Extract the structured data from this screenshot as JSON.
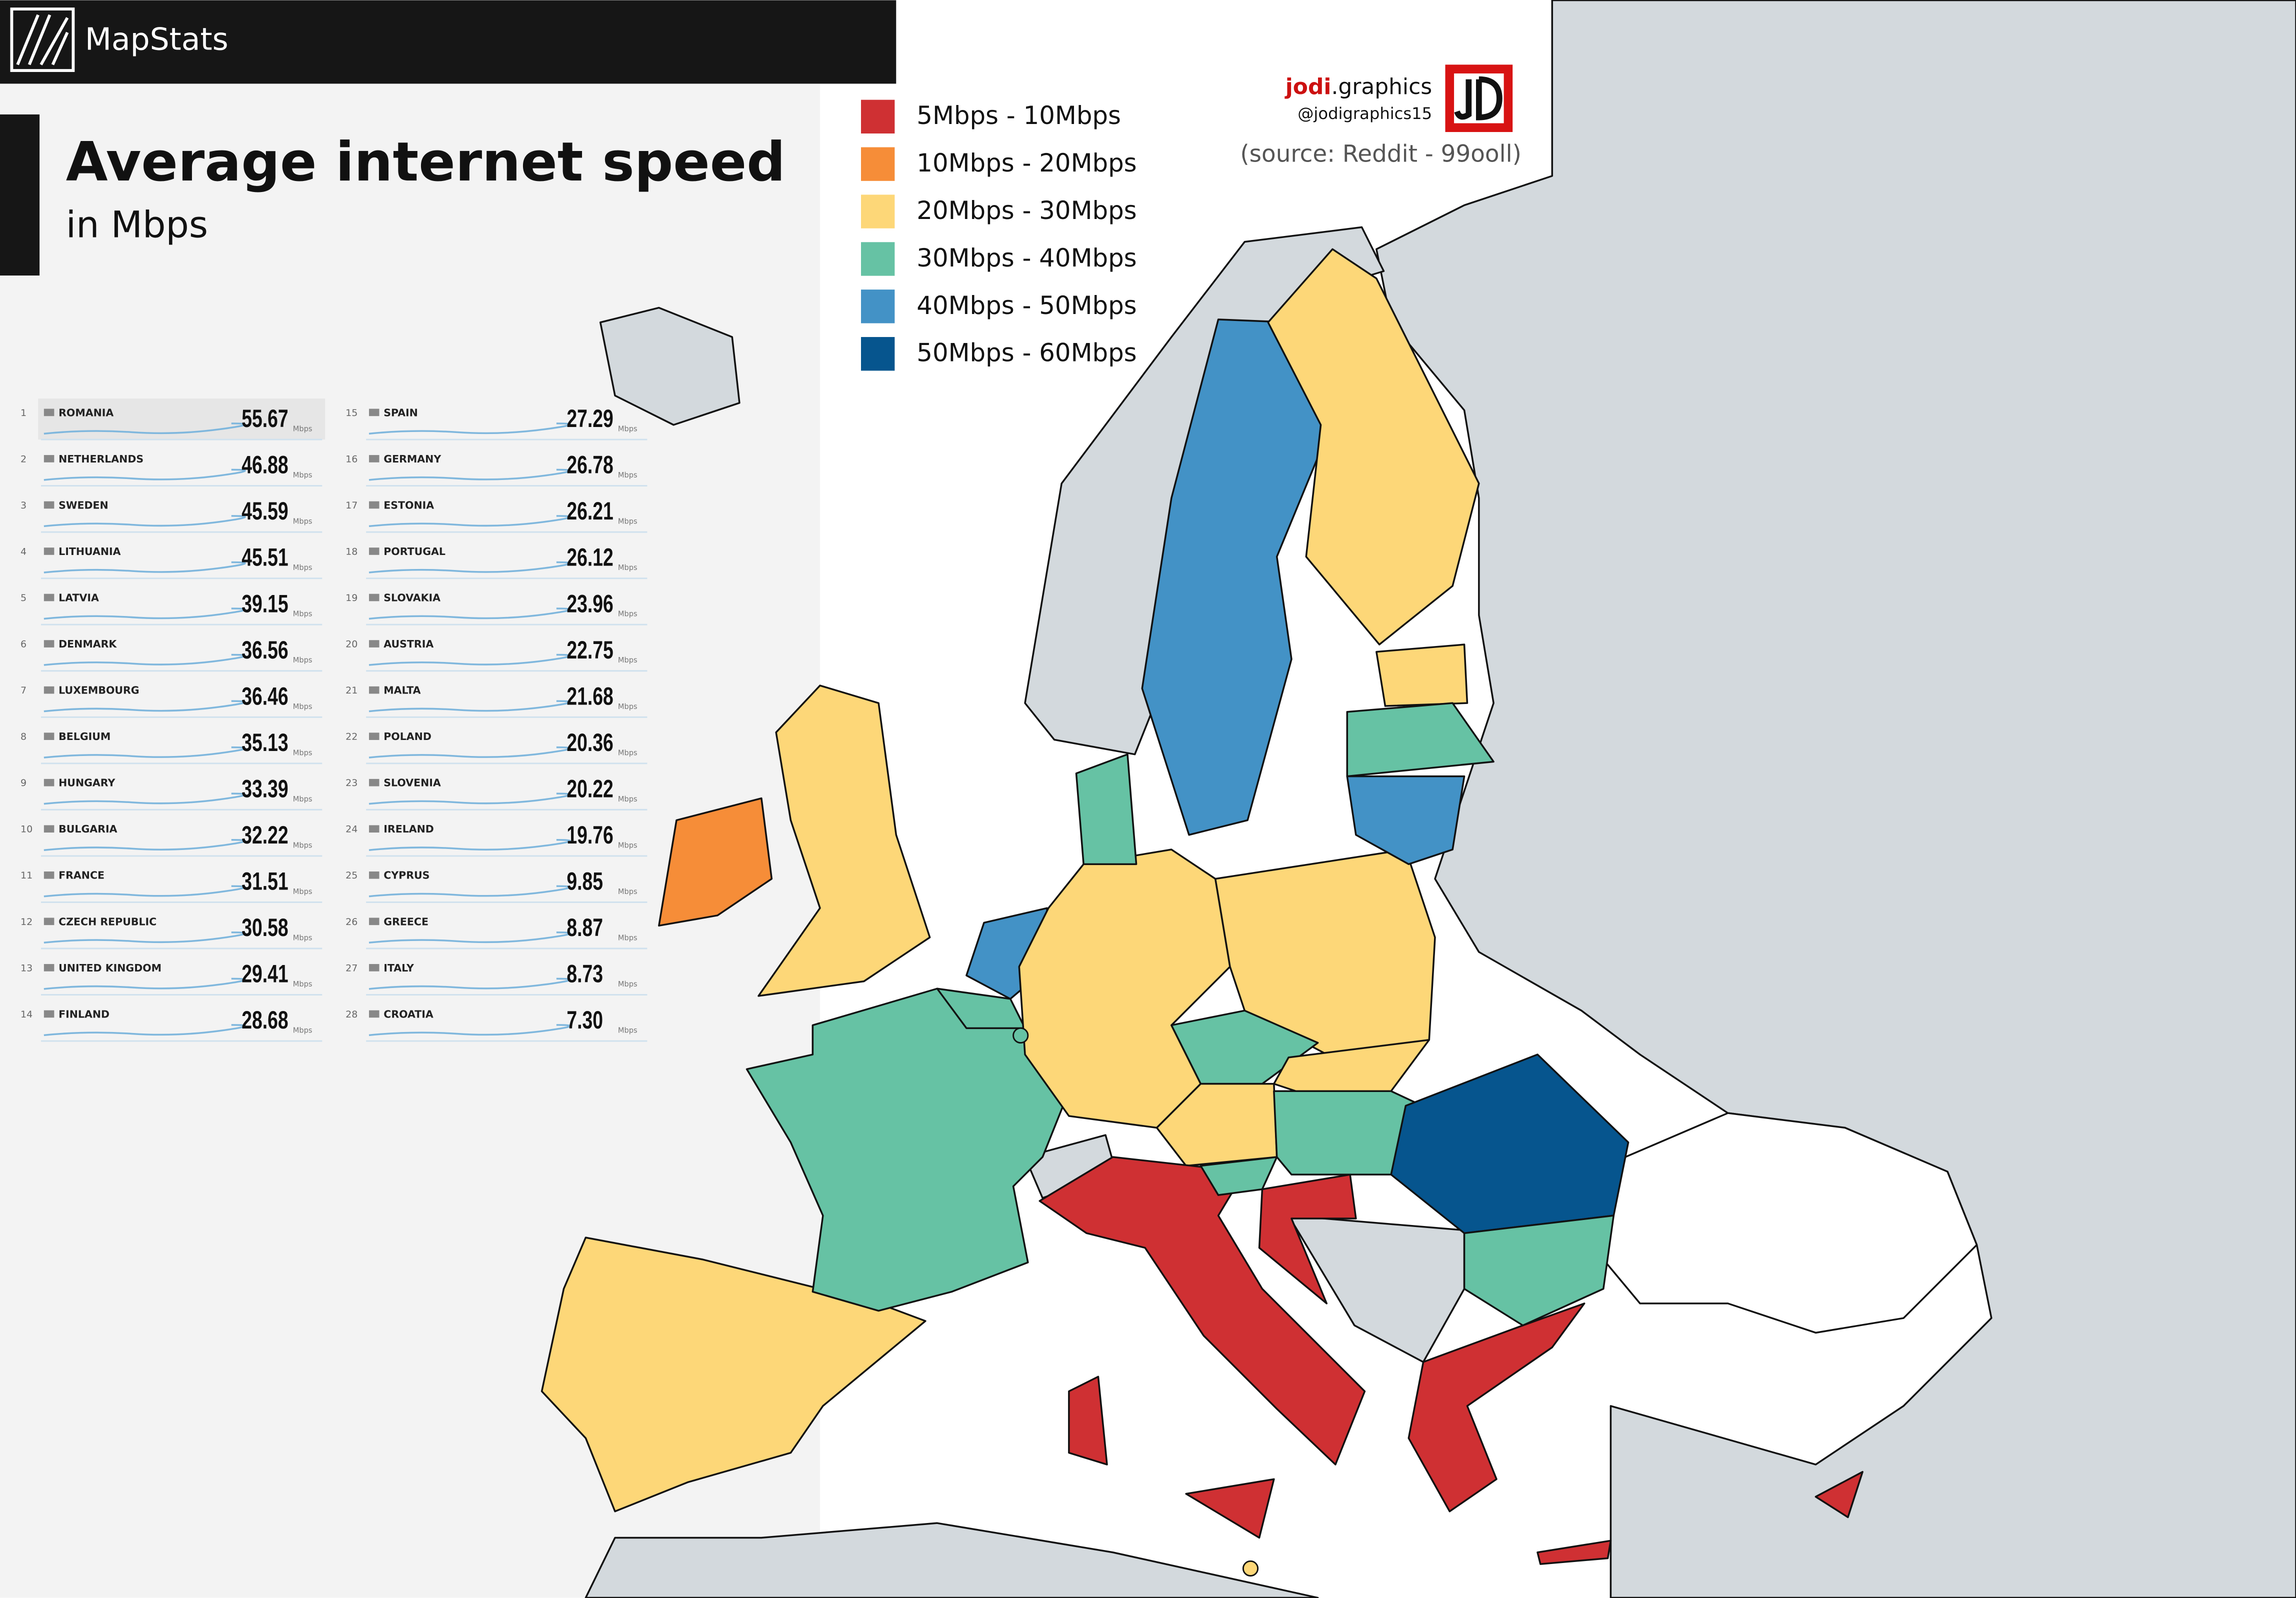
{
  "header": {
    "brand": "MapStats"
  },
  "title": "Average internet speed",
  "subtitle": "in Mbps",
  "credit": {
    "brand_bold": "jodi",
    "brand_rest": ".graphics",
    "handle": "@jodigraphics15",
    "source": "(source: Reddit - 99ooll)"
  },
  "legend": [
    {
      "label": "5Mbps - 10Mbps",
      "color": "#cf3033"
    },
    {
      "label": "10Mbps - 20Mbps",
      "color": "#f68d38"
    },
    {
      "label": "20Mbps - 30Mbps",
      "color": "#fdd778"
    },
    {
      "label": "30Mbps - 40Mbps",
      "color": "#66c2a4"
    },
    {
      "label": "40Mbps - 50Mbps",
      "color": "#4392c6"
    },
    {
      "label": "50Mbps - 60Mbps",
      "color": "#06558e"
    }
  ],
  "ranking": {
    "unit": "Mbps",
    "rows": [
      {
        "rank": 1,
        "country": "ROMANIA",
        "speed": 55.67
      },
      {
        "rank": 2,
        "country": "NETHERLANDS",
        "speed": 46.88
      },
      {
        "rank": 3,
        "country": "SWEDEN",
        "speed": 45.59
      },
      {
        "rank": 4,
        "country": "LITHUANIA",
        "speed": 45.51
      },
      {
        "rank": 5,
        "country": "LATVIA",
        "speed": 39.15
      },
      {
        "rank": 6,
        "country": "DENMARK",
        "speed": 36.56
      },
      {
        "rank": 7,
        "country": "LUXEMBOURG",
        "speed": 36.46
      },
      {
        "rank": 8,
        "country": "BELGIUM",
        "speed": 35.13
      },
      {
        "rank": 9,
        "country": "HUNGARY",
        "speed": 33.39
      },
      {
        "rank": 10,
        "country": "BULGARIA",
        "speed": 32.22
      },
      {
        "rank": 11,
        "country": "FRANCE",
        "speed": 31.51
      },
      {
        "rank": 12,
        "country": "CZECH REPUBLIC",
        "speed": 30.58
      },
      {
        "rank": 13,
        "country": "UNITED KINGDOM",
        "speed": 29.41
      },
      {
        "rank": 14,
        "country": "FINLAND",
        "speed": 28.68
      },
      {
        "rank": 15,
        "country": "SPAIN",
        "speed": 27.29
      },
      {
        "rank": 16,
        "country": "GERMANY",
        "speed": 26.78
      },
      {
        "rank": 17,
        "country": "ESTONIA",
        "speed": 26.21
      },
      {
        "rank": 18,
        "country": "PORTUGAL",
        "speed": 26.12
      },
      {
        "rank": 19,
        "country": "SLOVAKIA",
        "speed": 23.96
      },
      {
        "rank": 20,
        "country": "AUSTRIA",
        "speed": 22.75
      },
      {
        "rank": 21,
        "country": "MALTA",
        "speed": 21.68
      },
      {
        "rank": 22,
        "country": "POLAND",
        "speed": 20.36
      },
      {
        "rank": 23,
        "country": "SLOVENIA",
        "speed": 20.22
      },
      {
        "rank": 24,
        "country": "IRELAND",
        "speed": 19.76
      },
      {
        "rank": 25,
        "country": "CYPRUS",
        "speed": 9.85
      },
      {
        "rank": 26,
        "country": "GREECE",
        "speed": 8.87
      },
      {
        "rank": 27,
        "country": "ITALY",
        "speed": 8.73
      },
      {
        "rank": 28,
        "country": "CROATIA",
        "speed": {
          "value": 7.3,
          "label": "7.30"
        }
      }
    ]
  }
}
